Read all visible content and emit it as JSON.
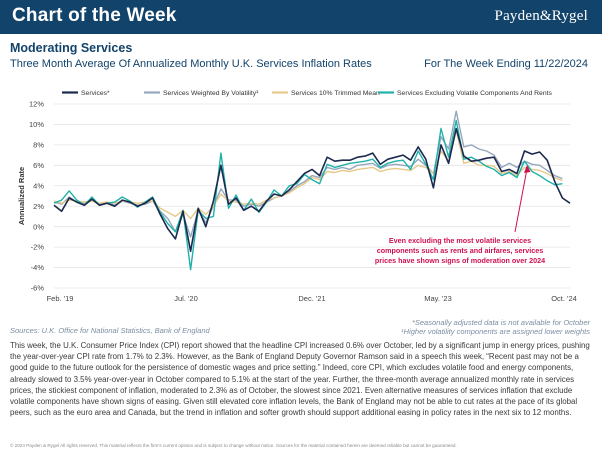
{
  "header": {
    "title": "Chart of the Week",
    "brand": "Payden&Rygel"
  },
  "title": "Moderating Services",
  "subtitle": "Three Month Average Of Annualized Monthly U.K. Services Inflation Rates",
  "week_label": "For The Week Ending 11/22/2024",
  "chart_data": {
    "type": "line",
    "ylabel": "Annualized Rate",
    "ylim": [
      -6,
      12
    ],
    "ytick_labels": [
      "12%",
      "10%",
      "8%",
      "6%",
      "4%",
      "2%",
      "0%",
      "-2%",
      "-4%",
      "-6%"
    ],
    "xtick_labels": [
      "Feb. '19",
      "Jul. '20",
      "Dec. '21",
      "May. '23",
      "Oct. '24"
    ],
    "x_range": [
      0,
      68
    ],
    "legend": [
      "Services*",
      "Services Weighted By Volatility¹",
      "Services 10% Trimmed Mean",
      "Services Excluding Volatile Components And Rents"
    ],
    "series": [
      {
        "name": "Services*",
        "color": "#1b2a4e",
        "values": [
          2.1,
          1.5,
          2.8,
          2.4,
          2.1,
          2.7,
          2.1,
          2.3,
          2.0,
          2.6,
          2.4,
          2.0,
          2.3,
          2.8,
          1.2,
          -0.2,
          -1.2,
          1.5,
          -2.4,
          1.8,
          0.0,
          2.5,
          6.0,
          2.2,
          2.8,
          1.6,
          2.0,
          1.5,
          2.5,
          3.2,
          3.0,
          3.6,
          4.4,
          5.2,
          5.6,
          5.0,
          6.8,
          6.4,
          6.5,
          6.5,
          6.8,
          6.9,
          7.2,
          6.1,
          6.6,
          6.8,
          7.0,
          6.5,
          7.8,
          6.6,
          3.8,
          8.0,
          6.2,
          9.6,
          6.9,
          6.4,
          6.5,
          6.7,
          6.8,
          5.4,
          5.6,
          5.2,
          7.4,
          7.1,
          7.3,
          6.5,
          4.4,
          2.8,
          2.3
        ]
      },
      {
        "name": "Services Weighted By Volatility¹",
        "color": "#95a7bd",
        "values": [
          2.4,
          2.2,
          2.9,
          2.4,
          2.3,
          2.6,
          2.2,
          2.4,
          2.1,
          2.5,
          2.3,
          2.1,
          2.2,
          2.5,
          1.5,
          0.8,
          -0.5,
          1.2,
          -1.0,
          1.6,
          0.4,
          2.0,
          3.7,
          2.6,
          2.6,
          2.0,
          2.2,
          2.0,
          2.4,
          2.8,
          3.0,
          3.4,
          4.0,
          4.4,
          5.0,
          4.8,
          5.8,
          5.6,
          5.8,
          5.6,
          6.0,
          6.1,
          6.2,
          5.7,
          6.0,
          6.1,
          6.0,
          5.9,
          6.6,
          6.0,
          5.2,
          8.8,
          7.6,
          11.3,
          7.8,
          8.0,
          7.6,
          7.4,
          7.0,
          5.8,
          6.2,
          5.8,
          6.4,
          6.1,
          6.0,
          5.5,
          5.0,
          4.7,
          null
        ]
      },
      {
        "name": "Services 10% Trimmed Mean",
        "color": "#e6c98a",
        "values": [
          2.5,
          2.3,
          2.6,
          2.5,
          2.4,
          2.5,
          2.3,
          2.4,
          2.3,
          2.5,
          2.4,
          2.3,
          2.4,
          2.5,
          1.8,
          1.4,
          1.0,
          1.6,
          0.8,
          1.8,
          1.2,
          2.0,
          3.2,
          2.5,
          2.4,
          2.2,
          2.3,
          2.2,
          2.6,
          2.8,
          3.0,
          3.3,
          3.8,
          4.2,
          4.8,
          4.6,
          5.4,
          5.3,
          5.5,
          5.4,
          5.6,
          5.7,
          5.8,
          5.4,
          5.6,
          5.7,
          5.6,
          5.5,
          6.0,
          5.8,
          5.2,
          7.4,
          6.4,
          9.4,
          6.2,
          6.4,
          6.0,
          6.0,
          5.9,
          5.2,
          5.4,
          5.0,
          5.8,
          5.6,
          5.5,
          5.2,
          4.8,
          4.5,
          null
        ]
      },
      {
        "name": "Services Excluding Volatile Components And Rents",
        "color": "#1fb2aa",
        "values": [
          2.3,
          2.6,
          3.5,
          2.6,
          2.1,
          2.9,
          2.1,
          2.3,
          2.4,
          2.9,
          2.5,
          1.9,
          2.4,
          2.9,
          1.4,
          0.3,
          -0.5,
          1.6,
          -4.2,
          1.6,
          0.8,
          1.0,
          7.2,
          1.8,
          3.1,
          1.6,
          2.7,
          1.4,
          2.4,
          3.6,
          3.0,
          4.0,
          4.2,
          5.1,
          4.6,
          4.2,
          6.1,
          5.8,
          6.0,
          6.2,
          6.3,
          6.4,
          6.6,
          5.8,
          6.2,
          6.4,
          6.5,
          5.6,
          7.4,
          6.1,
          4.6,
          9.6,
          6.8,
          10.4,
          6.6,
          6.8,
          6.4,
          5.9,
          5.6,
          5.0,
          5.3,
          4.8,
          6.4,
          5.4,
          5.0,
          4.5,
          4.1,
          4.2,
          null
        ]
      }
    ],
    "annotation": {
      "lines": [
        "Even excluding the most volatile services",
        "components such as rents and airfares, services",
        "prices have shown signs of moderation over 2024"
      ],
      "color": "#d0114f"
    }
  },
  "footnotes": {
    "source": "Sources: U.K. Office for National Statistics, Bank of England",
    "seasonal": "*Seasonally adjusted data is not available for October",
    "weighting": "¹Higher volatility components are assigned lower weights"
  },
  "body_text": "This week, the U.K. Consumer Price Index (CPI) report showed that the headline CPI increased 0.6% over October, led by a significant jump in energy prices, pushing the year-over-year CPI rate from 1.7% to 2.3%. However, as the Bank of England Deputy Governor Ramson said in a speech this week, “Recent past may not be a good guide to the future outlook for the persistence of domestic wages and price setting.” Indeed, core CPI, which excludes volatile food and energy components, already slowed to 3.5% year-over-year in October compared to 5.1% at the start of the year. Further, the three-month average annualized monthly rate in services prices, the stickiest component of inflation, moderated to 2.3% as of October, the slowest since 2021. Even alternative measures of services inflation that exclude volatile components have shown signs of easing. Given still elevated core inflation levels, the Bank of England may not be able to cut rates at the pace of its global peers, such as the euro area and Canada, but the trend in inflation and softer growth should support additional easing in policy rates in the next six to 12 months.",
  "disclaimer": "© 2024 Payden & Rygel All rights reserved. This material reflects the firm's current opinion and is subject to change without notice. Sources for the material contained herein are deemed reliable but cannot be guaranteed."
}
